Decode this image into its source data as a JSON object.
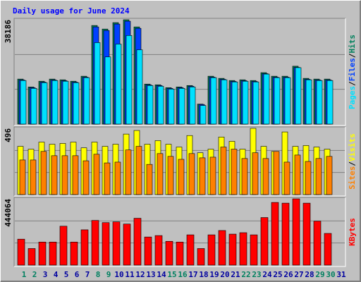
{
  "chart_data": [
    {
      "type": "bar",
      "title": "Daily usage for June 2024",
      "categories": [
        "1",
        "2",
        "3",
        "4",
        "5",
        "6",
        "7",
        "8",
        "9",
        "10",
        "11",
        "12",
        "13",
        "14",
        "15",
        "16",
        "17",
        "18",
        "19",
        "20",
        "21",
        "22",
        "23",
        "24",
        "25",
        "26",
        "27",
        "28",
        "29",
        "30",
        "31"
      ],
      "tick_label_colors": [
        "#008060",
        "#008060",
        "#0000a0",
        "#0000a0",
        "#0000a0",
        "#0000a0",
        "#0000a0",
        "#008060",
        "#008060",
        "#0000a0",
        "#0000a0",
        "#0000a0",
        "#0000a0",
        "#0000a0",
        "#008060",
        "#008060",
        "#0000a0",
        "#0000a0",
        "#0000a0",
        "#0000a0",
        "#0000a0",
        "#008060",
        "#008060",
        "#0000a0",
        "#0000a0",
        "#0000a0",
        "#0000a0",
        "#0000a0",
        "#008060",
        "#008060",
        "#0000a0"
      ],
      "ylim": [
        0,
        38186
      ],
      "yticks": [
        38186
      ],
      "legend_separator": "/",
      "series": [
        {
          "name": "Hits",
          "color": "#00805c",
          "values": [
            16475,
            13598,
            15690,
            16475,
            16213,
            15690,
            17521,
            36087,
            34780,
            37133,
            38186,
            35564,
            14644,
            14383,
            13337,
            13598,
            14121,
            7322,
            17521,
            16736,
            15952,
            16213,
            15952,
            18828,
            17521,
            17521,
            21182,
            16736,
            16475,
            16475,
            null
          ]
        },
        {
          "name": "Files",
          "color": "#0040ff",
          "values": [
            16150,
            13330,
            15380,
            16150,
            15890,
            15380,
            17170,
            35564,
            34257,
            36610,
            37656,
            35041,
            14350,
            14100,
            13070,
            13330,
            13840,
            7180,
            17170,
            16400,
            15630,
            15890,
            15630,
            18450,
            17170,
            17170,
            20760,
            16400,
            16150,
            16150,
            null
          ]
        },
        {
          "name": "Pages",
          "color": "#00e0ff",
          "values": [
            15952,
            13075,
            15167,
            15952,
            15690,
            15167,
            16998,
            29811,
            24581,
            29288,
            32426,
            27196,
            14121,
            13860,
            12814,
            13075,
            13598,
            6799,
            16998,
            16213,
            15429,
            15690,
            15429,
            18305,
            16998,
            16998,
            20659,
            16213,
            15952,
            15952,
            null
          ]
        }
      ]
    },
    {
      "type": "bar",
      "ylim": [
        0,
        496
      ],
      "yticks": [
        496
      ],
      "legend_separator": "/",
      "series": [
        {
          "name": "Visits",
          "color": "#ffff00",
          "values": [
            361,
            340,
            393,
            377,
            383,
            393,
            350,
            393,
            361,
            377,
            453,
            480,
            377,
            404,
            377,
            356,
            442,
            313,
            340,
            431,
            399,
            340,
            496,
            361,
            323,
            469,
            361,
            367,
            356,
            340,
            null
          ]
        },
        {
          "name": "Sites",
          "color": "#ff8000",
          "values": [
            259,
            259,
            323,
            291,
            291,
            291,
            253,
            302,
            237,
            243,
            334,
            361,
            226,
            307,
            286,
            264,
            307,
            275,
            280,
            356,
            340,
            270,
            313,
            270,
            323,
            243,
            296,
            248,
            270,
            286,
            null
          ]
        }
      ]
    },
    {
      "type": "bar",
      "ylim": [
        0,
        444064
      ],
      "yticks": [
        444064
      ],
      "series": [
        {
          "name": "KBytes",
          "color": "#ff0000",
          "values": [
            173772,
            111021,
            154464,
            154464,
            260658,
            154464,
            236523,
            299274,
            284793,
            289620,
            275139,
            313755,
            188253,
            197907,
            159291,
            154464,
            202734,
            111021,
            202734,
            231696,
            207561,
            217215,
            202734,
            318582,
            419949,
            415122,
            444064,
            415122,
            294447,
            212388,
            null
          ]
        }
      ]
    }
  ]
}
